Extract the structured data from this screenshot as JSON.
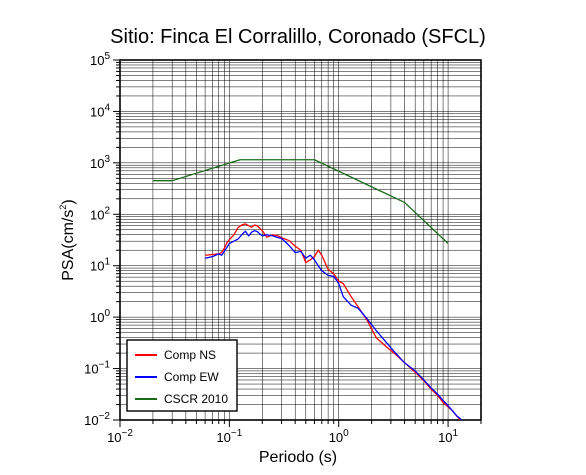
{
  "chart_data": {
    "type": "line",
    "title": "Sitio: Finca El Corralillo, Coronado (SFCL)",
    "xlabel": "Periodo (s)",
    "ylabel_main": "PSA(cm/s",
    "ylabel_sup": "2",
    "ylabel_close": ")",
    "x_scale": "log",
    "y_scale": "log",
    "xlim": [
      0.01,
      20
    ],
    "ylim": [
      0.01,
      100000
    ],
    "grid": true,
    "legend_position": "bottom-left",
    "x_ticks": [
      {
        "base": "10",
        "exp": "−2"
      },
      {
        "base": "10",
        "exp": "−1"
      },
      {
        "base": "10",
        "exp": "0"
      },
      {
        "base": "10",
        "exp": "1"
      }
    ],
    "y_ticks": [
      {
        "base": "10",
        "exp": "−2"
      },
      {
        "base": "10",
        "exp": "−1"
      },
      {
        "base": "10",
        "exp": "0"
      },
      {
        "base": "10",
        "exp": "1"
      },
      {
        "base": "10",
        "exp": "2"
      },
      {
        "base": "10",
        "exp": "3"
      },
      {
        "base": "10",
        "exp": "4"
      },
      {
        "base": "10",
        "exp": "5"
      }
    ],
    "series": [
      {
        "name": "Comp NS",
        "color": "#ff0000",
        "x": [
          0.06,
          0.07,
          0.08,
          0.085,
          0.09,
          0.095,
          0.1,
          0.11,
          0.12,
          0.13,
          0.14,
          0.15,
          0.16,
          0.17,
          0.18,
          0.2,
          0.22,
          0.25,
          0.28,
          0.3,
          0.35,
          0.4,
          0.45,
          0.5,
          0.55,
          0.6,
          0.65,
          0.7,
          0.8,
          0.9,
          1.0,
          1.1,
          1.3,
          1.5,
          1.8,
          2.2,
          2.7,
          3.3,
          4.0,
          5.0,
          6.0,
          7.0,
          8.0,
          9.0,
          10.0,
          11.0,
          12.0,
          13.0,
          14.0
        ],
        "values": [
          16,
          16.5,
          17,
          18,
          22,
          28,
          32,
          40,
          55,
          62,
          65,
          60,
          56,
          62,
          60,
          48,
          36,
          40,
          38,
          35,
          31,
          24,
          20,
          11.5,
          13,
          15,
          20,
          16,
          8.5,
          7,
          5,
          4.5,
          2.5,
          1.6,
          0.9,
          0.4,
          0.27,
          0.19,
          0.13,
          0.085,
          0.058,
          0.04,
          0.03,
          0.022,
          0.018,
          0.015,
          0.012,
          0.01,
          0.009
        ]
      },
      {
        "name": "Comp EW",
        "color": "#0000ff",
        "x": [
          0.06,
          0.07,
          0.08,
          0.085,
          0.09,
          0.1,
          0.11,
          0.12,
          0.13,
          0.14,
          0.15,
          0.16,
          0.17,
          0.18,
          0.2,
          0.22,
          0.25,
          0.28,
          0.3,
          0.35,
          0.4,
          0.45,
          0.5,
          0.55,
          0.6,
          0.65,
          0.7,
          0.8,
          0.9,
          1.0,
          1.1,
          1.3,
          1.5,
          1.8,
          2.2,
          2.7,
          3.3,
          4.0,
          5.0,
          6.0,
          7.0,
          8.0,
          9.0,
          10.0,
          11.0,
          12.0,
          13.0,
          14.0
        ],
        "values": [
          14,
          15,
          17,
          16,
          19,
          27,
          30,
          33,
          40,
          47,
          38,
          45,
          48,
          46,
          38,
          40,
          38,
          35,
          34,
          25,
          18,
          19,
          14,
          16,
          13,
          10,
          8,
          6.5,
          6.2,
          4.5,
          2.5,
          1.7,
          1.5,
          0.95,
          0.55,
          0.33,
          0.2,
          0.13,
          0.09,
          0.06,
          0.042,
          0.032,
          0.024,
          0.019,
          0.015,
          0.012,
          0.0105,
          0.009
        ]
      },
      {
        "name": "CSCR 2010",
        "color": "#1a6b1a",
        "x": [
          0.02,
          0.03,
          0.125,
          0.6,
          4.0,
          10.0
        ],
        "values": [
          450,
          450,
          1150,
          1150,
          170,
          27
        ]
      }
    ]
  }
}
